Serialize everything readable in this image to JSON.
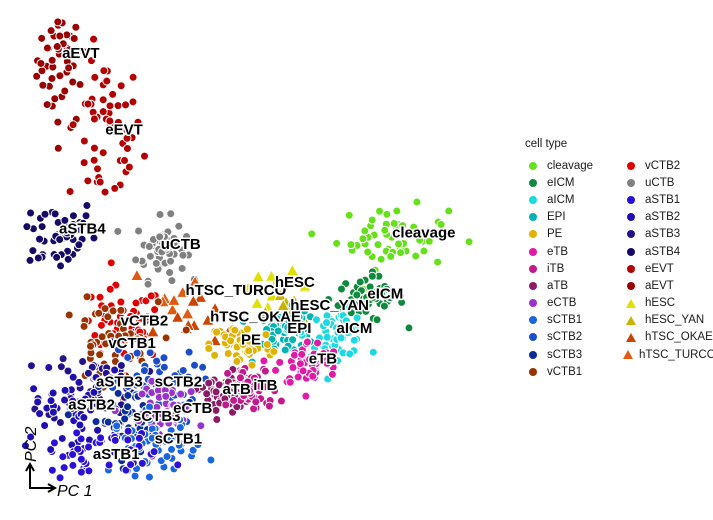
{
  "chart_data": {
    "type": "scatter",
    "xlabel": "PC 1",
    "ylabel": "PC 2",
    "legend_title": "cell type",
    "legend_position": "right",
    "grid": false,
    "xlim": [
      -60,
      95
    ],
    "ylim": [
      -35,
      85
    ],
    "series": [
      {
        "name": "cleavage",
        "color": "#66E01A",
        "shape": "circle"
      },
      {
        "name": "eICM",
        "color": "#0F8A3C",
        "shape": "circle"
      },
      {
        "name": "aICM",
        "color": "#1AD9E0",
        "shape": "circle"
      },
      {
        "name": "EPI",
        "color": "#00B3B3",
        "shape": "circle"
      },
      {
        "name": "PE",
        "color": "#E0B300",
        "shape": "circle"
      },
      {
        "name": "eTB",
        "color": "#E01AA6",
        "shape": "circle"
      },
      {
        "name": "iTB",
        "color": "#C21A8C",
        "shape": "circle"
      },
      {
        "name": "aTB",
        "color": "#8C1A66",
        "shape": "circle"
      },
      {
        "name": "eCTB",
        "color": "#9933CC",
        "shape": "circle"
      },
      {
        "name": "sCTB1",
        "color": "#1A66E0",
        "shape": "circle"
      },
      {
        "name": "sCTB2",
        "color": "#1A4DCC",
        "shape": "circle"
      },
      {
        "name": "sCTB3",
        "color": "#0A2C99",
        "shape": "circle"
      },
      {
        "name": "vCTB1",
        "color": "#993300",
        "shape": "circle"
      },
      {
        "name": "vCTB2",
        "color": "#E00000",
        "shape": "circle"
      },
      {
        "name": "uCTB",
        "color": "#808080",
        "shape": "circle"
      },
      {
        "name": "aSTB1",
        "color": "#2A10D9",
        "shape": "circle"
      },
      {
        "name": "aSTB2",
        "color": "#1F0FB3",
        "shape": "circle"
      },
      {
        "name": "aSTB3",
        "color": "#24128C",
        "shape": "circle"
      },
      {
        "name": "aSTB4",
        "color": "#140A66",
        "shape": "circle"
      },
      {
        "name": "eEVT",
        "color": "#B30000",
        "shape": "circle"
      },
      {
        "name": "aEVT",
        "color": "#990000",
        "shape": "circle"
      },
      {
        "name": "hESC",
        "color": "#E0E000",
        "shape": "triangle"
      },
      {
        "name": "hESC_YAN",
        "color": "#C8B400",
        "shape": "triangle"
      },
      {
        "name": "hTSC_OKAE",
        "color": "#CC4400",
        "shape": "triangle"
      },
      {
        "name": "hTSC_TURCO",
        "color": "#E05A10",
        "shape": "triangle"
      }
    ],
    "annotations": [
      {
        "text": "aEVT",
        "x": -47,
        "y": 75
      },
      {
        "text": "eEVT",
        "x": -33,
        "y": 55
      },
      {
        "text": "aSTB4",
        "x": -48,
        "y": 29
      },
      {
        "text": "uCTB",
        "x": -15,
        "y": 25
      },
      {
        "text": "cleavage",
        "x": 60,
        "y": 28
      },
      {
        "text": "hTSC_TURCO",
        "x": -7,
        "y": 13
      },
      {
        "text": "hESC",
        "x": 22,
        "y": 15
      },
      {
        "text": "hESC_YAN",
        "x": 27,
        "y": 9
      },
      {
        "text": "eICM",
        "x": 52,
        "y": 12
      },
      {
        "text": "vCTB2",
        "x": -28,
        "y": 5
      },
      {
        "text": "hTSC_OKAE",
        "x": 1,
        "y": 6
      },
      {
        "text": "EPI",
        "x": 26,
        "y": 3
      },
      {
        "text": "aICM",
        "x": 42,
        "y": 3
      },
      {
        "text": "vCTB1",
        "x": -32,
        "y": -1
      },
      {
        "text": "PE",
        "x": 11,
        "y": 0
      },
      {
        "text": "eTB",
        "x": 33,
        "y": -5
      },
      {
        "text": "aSTB3",
        "x": -36,
        "y": -11
      },
      {
        "text": "sCTB2",
        "x": -17,
        "y": -11
      },
      {
        "text": "aTB",
        "x": 5,
        "y": -13
      },
      {
        "text": "iTB",
        "x": 15,
        "y": -12
      },
      {
        "text": "aSTB2",
        "x": -45,
        "y": -17
      },
      {
        "text": "sCTB3",
        "x": -24,
        "y": -20
      },
      {
        "text": "eCTB",
        "x": -11,
        "y": -18
      },
      {
        "text": "sCTB1",
        "x": -17,
        "y": -26
      },
      {
        "text": "aSTB1",
        "x": -37,
        "y": -30
      }
    ]
  }
}
